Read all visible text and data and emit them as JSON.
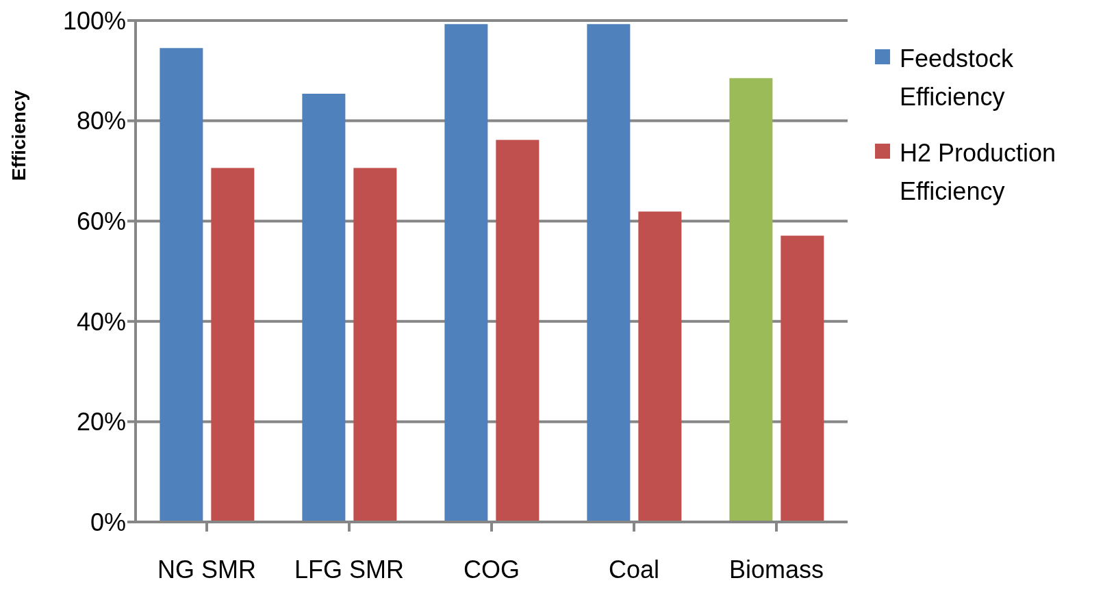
{
  "chart_data": {
    "type": "bar",
    "ylabel": "Efficiency",
    "categories": [
      "NG SMR",
      "LFG SMR",
      "COG",
      "Coal",
      "Biomass"
    ],
    "series": [
      {
        "name": "Feedstock Efficiency",
        "color": "#4f81bd",
        "colors": [
          "#4f81bd",
          "#4f81bd",
          "#4f81bd",
          "#4f81bd",
          "#9bbb59"
        ],
        "values": [
          94.5,
          85.4,
          99.3,
          99.3,
          88.5
        ]
      },
      {
        "name": "H2 Production Efficiency",
        "color": "#c0504d",
        "values": [
          70.6,
          70.6,
          76.2,
          61.9,
          57.1
        ]
      }
    ],
    "ylim": [
      0,
      100
    ],
    "yticks": [
      {
        "value": 0,
        "label": "0%"
      },
      {
        "value": 20,
        "label": "20%"
      },
      {
        "value": 40,
        "label": "40%"
      },
      {
        "value": 60,
        "label": "60%"
      },
      {
        "value": 80,
        "label": "80%"
      },
      {
        "value": 100,
        "label": "100%"
      }
    ],
    "grid": "y",
    "legend": "right"
  }
}
